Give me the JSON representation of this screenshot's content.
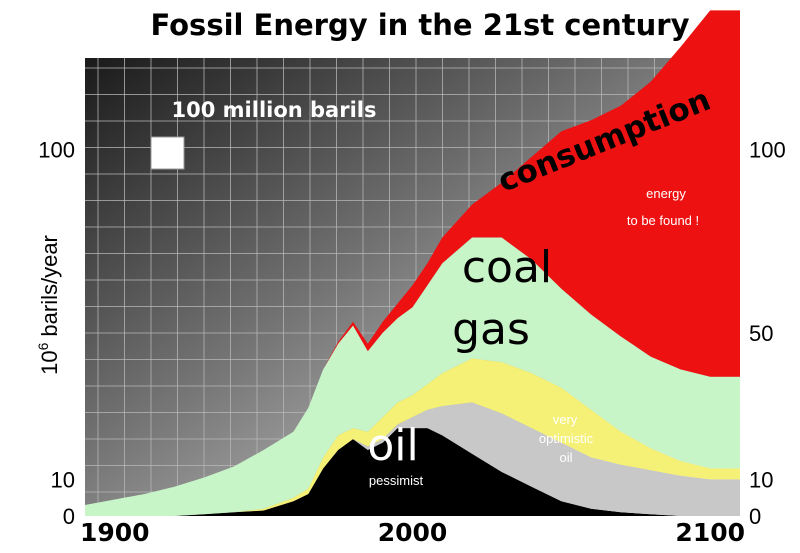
{
  "chart_data": {
    "type": "area",
    "title": "Fossil Energy in the 21st century",
    "ylabel_base": "10",
    "ylabel_exp": "6",
    "ylabel_unit": "barils/year",
    "x": [
      1890,
      1900,
      1910,
      1920,
      1930,
      1940,
      1950,
      1960,
      1965,
      1970,
      1975,
      1980,
      1985,
      1990,
      1995,
      2000,
      2005,
      2010,
      2020,
      2030,
      2040,
      2050,
      2060,
      2070,
      2080,
      2090,
      2100,
      2110
    ],
    "xlim": [
      1890,
      2110
    ],
    "ylim": [
      0,
      125
    ],
    "x_ticks": [
      "1900",
      "2000",
      "2100"
    ],
    "x_tick_values": [
      1900,
      2000,
      2100
    ],
    "y_ticks_left": [
      "100",
      "10",
      "0"
    ],
    "y_ticks_right": [
      "100",
      "50",
      "10",
      "0"
    ],
    "y_tick_values_left": [
      100,
      10,
      0
    ],
    "y_tick_values_right": [
      100,
      50,
      10,
      0
    ],
    "series": [
      {
        "name": "oil",
        "sublabel": "pessimist",
        "color": "#000000",
        "values": [
          0,
          0,
          0,
          0,
          0.5,
          1,
          1.5,
          4,
          6,
          13,
          18,
          21,
          18,
          20,
          24,
          24,
          24,
          22,
          17,
          12,
          8,
          4,
          2,
          1,
          0.5,
          0,
          0,
          0
        ]
      },
      {
        "name": "very optimistic oil",
        "sublabel_lines": [
          "very",
          "optimistic",
          "oil"
        ],
        "color": "#c8c8c8",
        "values": [
          0,
          0,
          0,
          0,
          0,
          0,
          0,
          0,
          0,
          0,
          0,
          0,
          1,
          1,
          1,
          3,
          5,
          8,
          14,
          16,
          16,
          16,
          14,
          13,
          12,
          11,
          10,
          10
        ]
      },
      {
        "name": "gas",
        "color": "#f5f076",
        "values": [
          0,
          0,
          0,
          0,
          0,
          0,
          0.5,
          1,
          1.5,
          3,
          4,
          3,
          4,
          6,
          6,
          6,
          7,
          9,
          12,
          14,
          15,
          15,
          13,
          9,
          6,
          4,
          3,
          3
        ]
      },
      {
        "name": "coal",
        "color": "#c8f5c8",
        "values": [
          3,
          4.5,
          6,
          8,
          10,
          12.5,
          16,
          18,
          22,
          24,
          25,
          28,
          22,
          23,
          23,
          24,
          27,
          30,
          33,
          34,
          31,
          27,
          26,
          26,
          25,
          25,
          25,
          25
        ]
      },
      {
        "name": "consumption",
        "sublabel_lines": [
          "energy",
          "to be found !"
        ],
        "color": "#ee1111",
        "values": [
          0,
          0,
          0,
          0,
          0,
          0,
          0,
          0,
          0,
          0,
          0.5,
          1,
          2,
          3,
          4,
          6,
          6,
          7,
          9,
          15,
          28,
          43,
          53,
          63,
          75,
          88,
          100,
          100
        ]
      }
    ],
    "annotation": "100 million barils"
  }
}
